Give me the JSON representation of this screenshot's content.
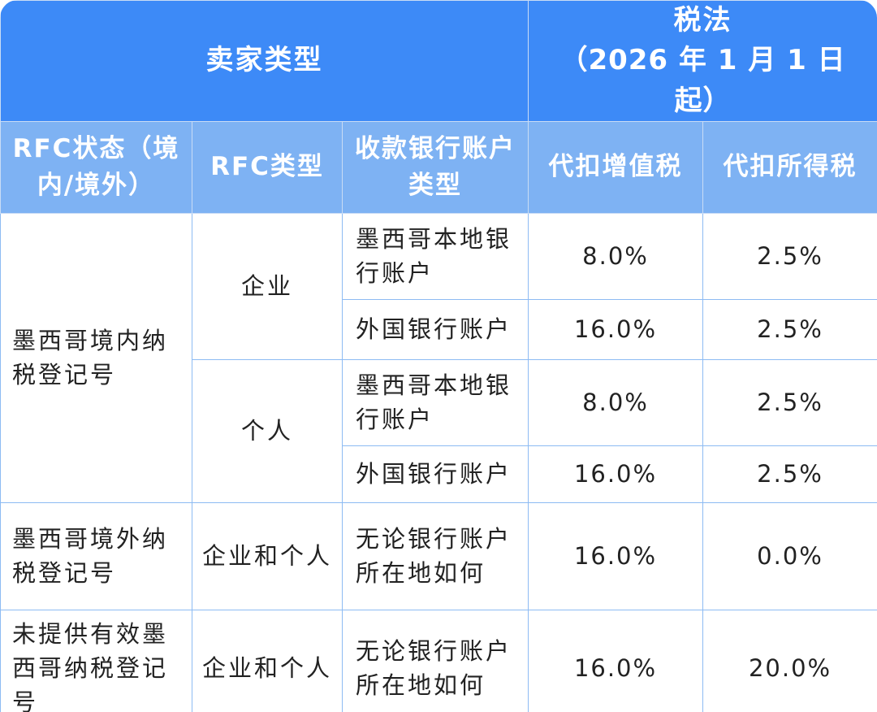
{
  "header": {
    "seller_type": "卖家类型",
    "tax_law_line1": "税法",
    "tax_law_line2": "（2026 年 1 月 1 日起）",
    "rfc_status": "RFC状态（境内/境外）",
    "rfc_type": "RFC类型",
    "bank_account_type": "收款银行账户类型",
    "vat_withholding": "代扣增值税",
    "income_tax_withholding": "代扣所得税"
  },
  "rows": {
    "domestic_rfc": "墨西哥境内纳税登记号",
    "enterprise": "企业",
    "individual": "个人",
    "foreign_rfc": "墨西哥境外纳税登记号",
    "enterprise_and_individual_1": "企业和个人",
    "no_rfc": "未提供有效墨西哥纳税登记号",
    "enterprise_and_individual_2": "企业和个人",
    "r1": {
      "bank": "墨西哥本地银行账户",
      "vat": "8.0%",
      "income": "2.5%"
    },
    "r2": {
      "bank": "外国银行账户",
      "vat": "16.0%",
      "income": "2.5%"
    },
    "r3": {
      "bank": "墨西哥本地银行账户",
      "vat": "8.0%",
      "income": "2.5%"
    },
    "r4": {
      "bank": "外国银行账户",
      "vat": "16.0%",
      "income": "2.5%"
    },
    "r5": {
      "bank": "无论银行账户所在地如何",
      "vat": "16.0%",
      "income": "0.0%"
    },
    "r6": {
      "bank": "无论银行账户所在地如何",
      "vat": "16.0%",
      "income": "20.0%"
    }
  }
}
